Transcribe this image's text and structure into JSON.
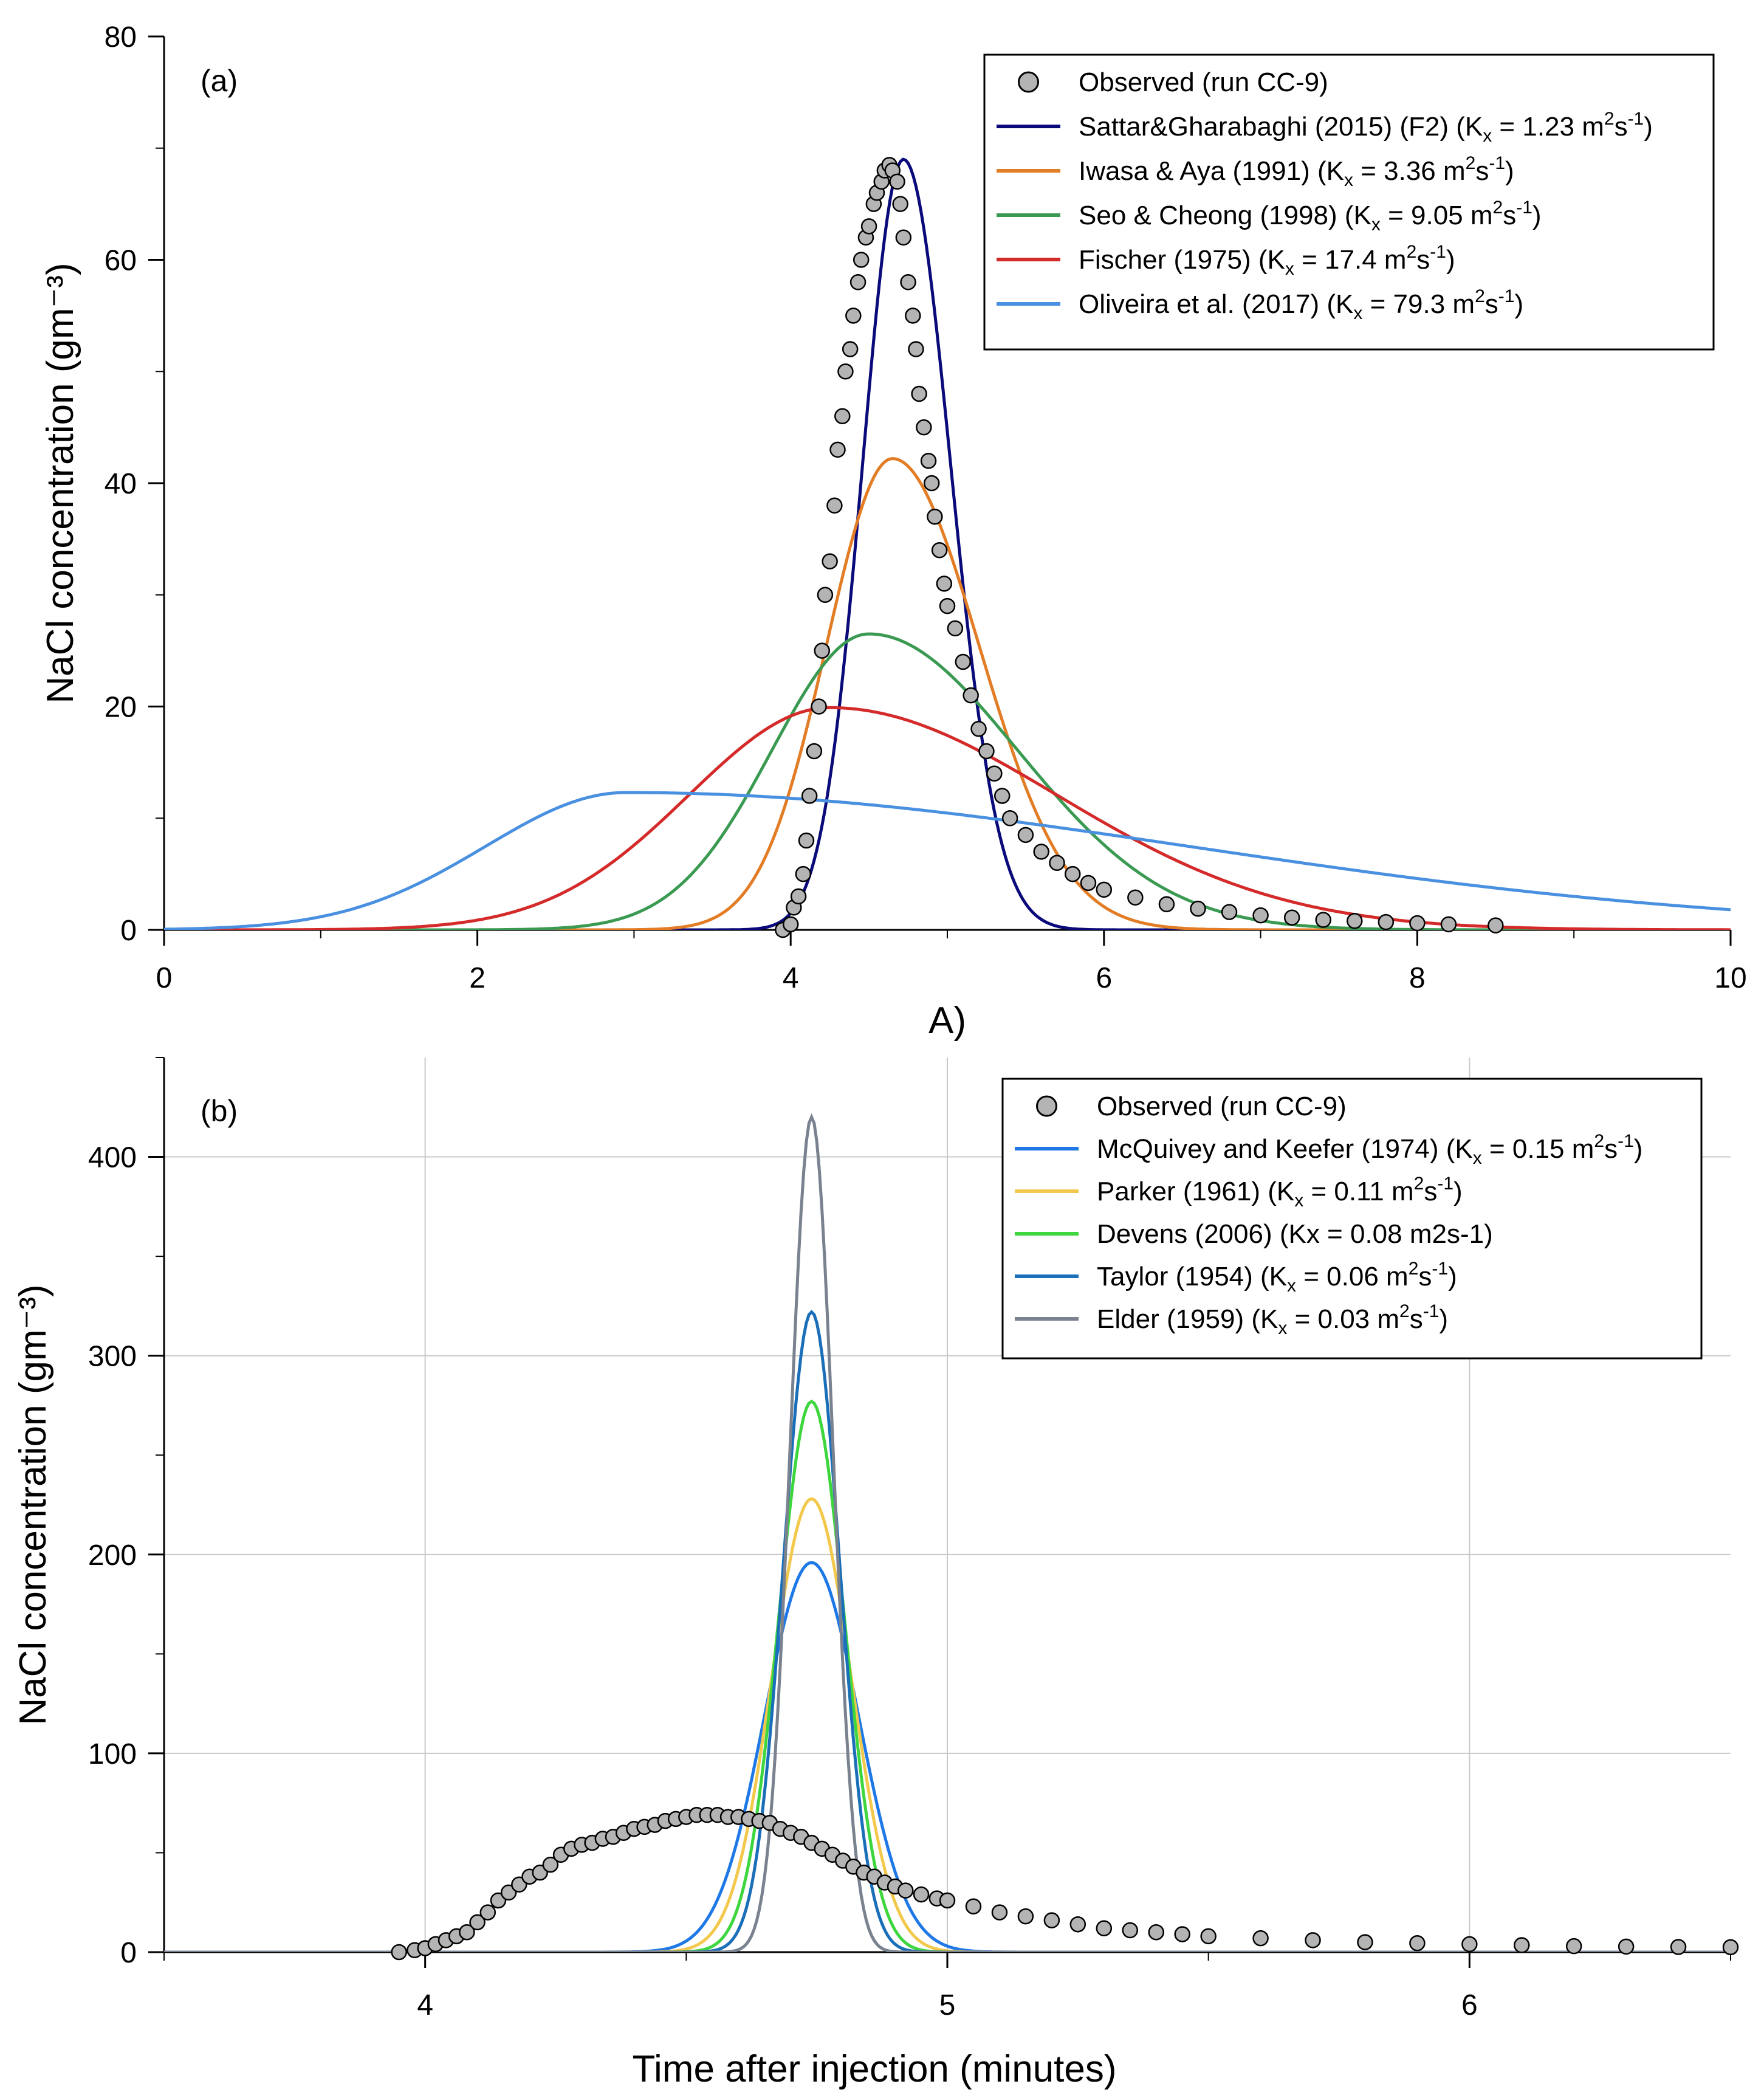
{
  "chart_data": [
    {
      "panel": "(a)",
      "type": "line",
      "ylabel": "NaCl concentration (gm⁻³)",
      "xlabel": "A)",
      "xlim": [
        0,
        10
      ],
      "ylim": [
        0,
        80
      ],
      "xticks": [
        "0",
        "2",
        "4",
        "6",
        "8",
        "10"
      ],
      "yticks": [
        "0",
        "20",
        "40",
        "60",
        "80"
      ],
      "grid": false,
      "legend_position": "top-right",
      "observed": {
        "name": "Observed (run CC-9)",
        "x": [
          3.95,
          4.0,
          4.02,
          4.05,
          4.08,
          4.1,
          4.12,
          4.15,
          4.18,
          4.2,
          4.22,
          4.25,
          4.28,
          4.3,
          4.33,
          4.35,
          4.38,
          4.4,
          4.43,
          4.45,
          4.48,
          4.5,
          4.53,
          4.55,
          4.58,
          4.6,
          4.63,
          4.65,
          4.68,
          4.7,
          4.72,
          4.75,
          4.78,
          4.8,
          4.82,
          4.85,
          4.88,
          4.9,
          4.92,
          4.95,
          4.98,
          5.0,
          5.05,
          5.1,
          5.15,
          5.2,
          5.25,
          5.3,
          5.35,
          5.4,
          5.5,
          5.6,
          5.7,
          5.8,
          5.9,
          6.0,
          6.2,
          6.4,
          6.6,
          6.8,
          7.0,
          7.2,
          7.4,
          7.6,
          7.8,
          8.0,
          8.2,
          8.5
        ],
        "y": [
          0,
          0.5,
          2,
          3,
          5,
          8,
          12,
          16,
          20,
          25,
          30,
          33,
          38,
          43,
          46,
          50,
          52,
          55,
          58,
          60,
          62,
          63,
          65,
          66,
          67,
          68,
          68.5,
          68,
          67,
          65,
          62,
          58,
          55,
          52,
          48,
          45,
          42,
          40,
          37,
          34,
          31,
          29,
          27,
          24,
          21,
          18,
          16,
          14,
          12,
          10,
          8.5,
          7,
          6,
          5,
          4.2,
          3.6,
          2.9,
          2.3,
          1.9,
          1.6,
          1.3,
          1.1,
          0.9,
          0.8,
          0.7,
          0.6,
          0.5,
          0.4
        ]
      },
      "series": [
        {
          "name": "Sattar&Gharabaghi (2015) (F2) (Kx = 1.23 m2s-1)",
          "color": "#0a0a7a",
          "peak_x": 4.72,
          "peak_y": 69.0,
          "sigma_left": 0.26,
          "sigma_right": 0.3
        },
        {
          "name": "Iwasa & Aya (1991) (Kx = 3.36 m2s-1)",
          "color": "#e27d26",
          "peak_x": 4.65,
          "peak_y": 42.2,
          "sigma_left": 0.42,
          "sigma_right": 0.55
        },
        {
          "name": "Seo & Cheong (1998) (Kx = 9.05 m2s-1)",
          "color": "#3a9a52",
          "peak_x": 4.5,
          "peak_y": 26.5,
          "sigma_left": 0.62,
          "sigma_right": 0.95
        },
        {
          "name": "Fischer (1975) (Kx = 17.4 m2s-1)",
          "color": "#d42a2a",
          "peak_x": 4.25,
          "peak_y": 19.9,
          "sigma_left": 0.9,
          "sigma_right": 1.45
        },
        {
          "name": "Oliveira et al. (2017) (Kx = 79.3 m2s-1)",
          "color": "#4a90e0",
          "peak_x": 2.95,
          "peak_y": 12.3,
          "sigma_left": 0.9,
          "sigma_right": 3.6
        }
      ],
      "legend": [
        {
          "pre": "Observed (run CC-9)",
          "sub": "",
          "mid": "",
          "sup": "",
          "post": ""
        },
        {
          "pre": "Sattar&Gharabaghi (2015) (F2) (K",
          "sub": "x",
          "mid": " = 1.23 m",
          "sup": "2",
          "mid2": "s",
          "sup2": "-1",
          "post": ")"
        },
        {
          "pre": "Iwasa & Aya (1991) (K",
          "sub": "x",
          "mid": " = 3.36 m",
          "sup": "2",
          "mid2": "s",
          "sup2": "-1",
          "post": ")"
        },
        {
          "pre": "Seo & Cheong (1998) (K",
          "sub": "x",
          "mid": " = 9.05 m",
          "sup": "2",
          "mid2": "s",
          "sup2": "-1",
          "post": ")"
        },
        {
          "pre": "Fischer (1975) (K",
          "sub": "x",
          "mid": " = 17.4 m",
          "sup": "2",
          "mid2": "s",
          "sup2": "-1",
          "post": ")"
        },
        {
          "pre": "Oliveira et al. (2017) (K",
          "sub": "x",
          "mid": " = 79.3 m",
          "sup": "2",
          "mid2": "s",
          "sup2": "-1",
          "post": ")"
        }
      ]
    },
    {
      "panel": "(b)",
      "type": "line",
      "ylabel": "NaCl concentration (gm⁻³)",
      "xlabel": "Time after injection (minutes)",
      "xlim": [
        3.5,
        6.5
      ],
      "ylim": [
        0,
        450
      ],
      "xticks": [
        "4",
        "5",
        "6"
      ],
      "yticks": [
        "0",
        "100",
        "200",
        "300",
        "400"
      ],
      "grid": true,
      "legend_position": "top-right",
      "observed": {
        "name": "Observed (run CC-9)",
        "x": [
          3.95,
          3.98,
          4.0,
          4.02,
          4.04,
          4.06,
          4.08,
          4.1,
          4.12,
          4.14,
          4.16,
          4.18,
          4.2,
          4.22,
          4.24,
          4.26,
          4.28,
          4.3,
          4.32,
          4.34,
          4.36,
          4.38,
          4.4,
          4.42,
          4.44,
          4.46,
          4.48,
          4.5,
          4.52,
          4.54,
          4.56,
          4.58,
          4.6,
          4.62,
          4.64,
          4.66,
          4.68,
          4.7,
          4.72,
          4.74,
          4.76,
          4.78,
          4.8,
          4.82,
          4.84,
          4.86,
          4.88,
          4.9,
          4.92,
          4.95,
          4.98,
          5.0,
          5.05,
          5.1,
          5.15,
          5.2,
          5.25,
          5.3,
          5.35,
          5.4,
          5.45,
          5.5,
          5.6,
          5.7,
          5.8,
          5.9,
          6.0,
          6.1,
          6.2,
          6.3,
          6.4,
          6.5
        ],
        "y": [
          0,
          1,
          2,
          4,
          6,
          8,
          10,
          15,
          20,
          26,
          30,
          34,
          38,
          40,
          44,
          49,
          52,
          54,
          55,
          57,
          58,
          60,
          62,
          63,
          64,
          66,
          67,
          68,
          69,
          69,
          69,
          68,
          68,
          67,
          66,
          65,
          62,
          60,
          58,
          55,
          52,
          49,
          46,
          43,
          40,
          38,
          35,
          33,
          31,
          29,
          27,
          26,
          23,
          20,
          18,
          16,
          14,
          12,
          11,
          10,
          9,
          8,
          7,
          6,
          5,
          4.5,
          4,
          3.5,
          3,
          2.8,
          2.6,
          2.5
        ]
      },
      "series": [
        {
          "name": "McQuivey and Keefer (1974) (Kx = 0.15 m2s-1)",
          "color": "#1e78e6",
          "peak_x": 4.74,
          "peak_y": 196,
          "sigma": 0.09
        },
        {
          "name": "Parker (1961) (Kx = 0.11 m2s-1)",
          "color": "#f2c94c",
          "peak_x": 4.74,
          "peak_y": 228,
          "sigma": 0.076
        },
        {
          "name": "Devens (2006) (Kx = 0.08 m2s-1)",
          "color": "#3ed63e",
          "peak_x": 4.74,
          "peak_y": 277,
          "sigma": 0.063
        },
        {
          "name": "Taylor (1954) (Kx = 0.06 m2s-1)",
          "color": "#1a6fb8",
          "peak_x": 4.74,
          "peak_y": 322,
          "sigma": 0.054
        },
        {
          "name": "Elder (1959) (Kx = 0.03 m2s-1)",
          "color": "#7a8290",
          "peak_x": 4.74,
          "peak_y": 420,
          "sigma": 0.041
        }
      ],
      "legend": [
        {
          "pre": "Observed (run CC-9)",
          "sub": "",
          "mid": "",
          "sup": "",
          "post": ""
        },
        {
          "pre": "McQuivey and Keefer (1974) (K",
          "sub": "x",
          "mid": " = 0.15 m",
          "sup": "2",
          "mid2": "s",
          "sup2": "-1",
          "post": ")"
        },
        {
          "pre": "Parker (1961) (K",
          "sub": "x",
          "mid": " = 0.11 m",
          "sup": "2",
          "mid2": "s",
          "sup2": "-1",
          "post": ")"
        },
        {
          "pre": "Devens (2006) (Kx = 0.08 m2s-1)",
          "sub": "",
          "mid": "",
          "sup": "",
          "post": ""
        },
        {
          "pre": "Taylor (1954) (K",
          "sub": "x",
          "mid": " = 0.06 m",
          "sup": "2",
          "mid2": "s",
          "sup2": "-1",
          "post": ")"
        },
        {
          "pre": "Elder (1959) (K",
          "sub": "x",
          "mid": " = 0.03 m",
          "sup": "2",
          "mid2": "s",
          "sup2": "-1",
          "post": ")"
        }
      ]
    }
  ]
}
